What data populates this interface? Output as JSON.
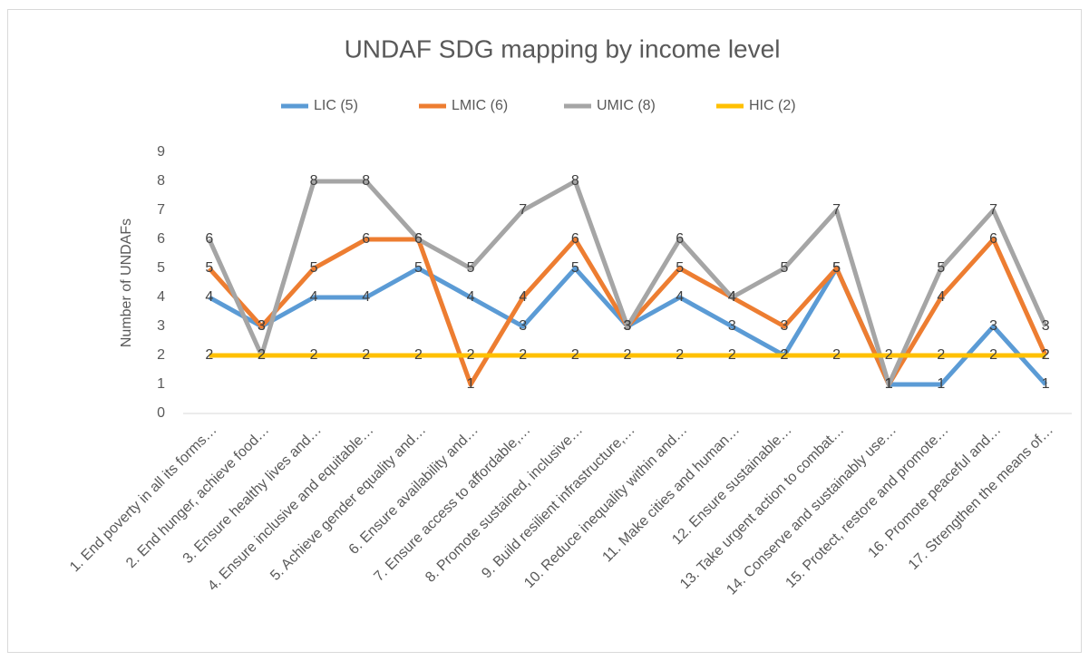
{
  "chart_data": {
    "type": "line",
    "title": "UNDAF SDG mapping by income level",
    "y_label": "Number of UNDAFs",
    "categories": [
      "1. End poverty in all its forms…",
      "2. End hunger, achieve food…",
      "3. Ensure healthy lives and…",
      "4. Ensure inclusive and equitable…",
      "5. Achieve gender equality and…",
      "6. Ensure availability and…",
      "7. Ensure access to affordable,…",
      "8. Promote sustained, inclusive…",
      "9. Build resilient infrastructure,…",
      "10. Reduce inequality within and…",
      "11. Make cities and human…",
      "12. Ensure sustainable…",
      "13. Take urgent action to combat…",
      "14. Conserve and sustainably use…",
      "15. Protect, restore and promote…",
      "16. Promote peaceful and…",
      "17. Strengthen the means of…"
    ],
    "series": [
      {
        "name": "LIC (5)",
        "color": "#5b9bd5",
        "values": [
          4,
          3,
          4,
          4,
          5,
          4,
          3,
          5,
          3,
          4,
          3,
          2,
          5,
          1,
          1,
          3,
          1
        ]
      },
      {
        "name": "LMIC (6)",
        "color": "#ed7d31",
        "values": [
          5,
          3,
          5,
          6,
          6,
          1,
          4,
          6,
          3,
          5,
          4,
          3,
          5,
          1,
          4,
          6,
          2
        ]
      },
      {
        "name": "UMIC (8)",
        "color": "#a5a5a5",
        "values": [
          6,
          2,
          8,
          8,
          6,
          5,
          7,
          8,
          3,
          6,
          4,
          5,
          7,
          1,
          5,
          7,
          3
        ]
      },
      {
        "name": "HIC (2)",
        "color": "#ffc000",
        "values": [
          2,
          2,
          2,
          2,
          2,
          2,
          2,
          2,
          2,
          2,
          2,
          2,
          2,
          2,
          2,
          2,
          2
        ]
      }
    ],
    "ylim": [
      0,
      9
    ],
    "yticks": [
      0,
      1,
      2,
      3,
      4,
      5,
      6,
      7,
      8,
      9
    ],
    "legend": "top",
    "data_labels": true
  }
}
